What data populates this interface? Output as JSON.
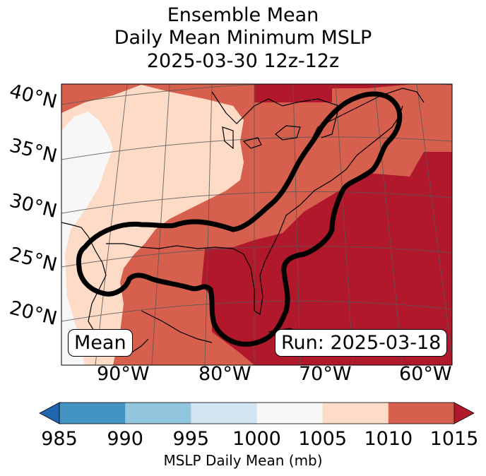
{
  "title": {
    "line1": "Ensemble Mean",
    "line2": "Daily Mean Minimum MSLP",
    "line3": "2025-03-30 12z-12z"
  },
  "map": {
    "region": "Eastern North America and western Atlantic",
    "lat_labels": [
      "40°N",
      "35°N",
      "30°N",
      "25°N",
      "20°N"
    ],
    "lon_labels": [
      "90°W",
      "80°W",
      "70°W",
      "60°W"
    ],
    "left_box_text": "Mean",
    "right_box_text": "Run: 2025-03-18"
  },
  "colorbar": {
    "label": "MSLP Daily Mean (mb)",
    "ticks": [
      "985",
      "990",
      "995",
      "1000",
      "1005",
      "1010",
      "1015"
    ],
    "bins": [
      {
        "range": "<985",
        "color": "#2166ac"
      },
      {
        "range": "985-990",
        "color": "#4393c3"
      },
      {
        "range": "990-995",
        "color": "#92c5de"
      },
      {
        "range": "995-1000",
        "color": "#d1e5f0"
      },
      {
        "range": "1000-1005",
        "color": "#f7f7f7"
      },
      {
        "range": "1005-1010",
        "color": "#fddbc7"
      },
      {
        "range": "1010-1015",
        "color": "#d6604d"
      },
      {
        "range": ">1015",
        "color": "#b2182b"
      }
    ]
  },
  "colors": {
    "p1000": "#f7f7f7",
    "p1005": "#fddbc7",
    "p1010": "#d6604d",
    "p1015": "#b2182b",
    "contour": "#000000"
  }
}
